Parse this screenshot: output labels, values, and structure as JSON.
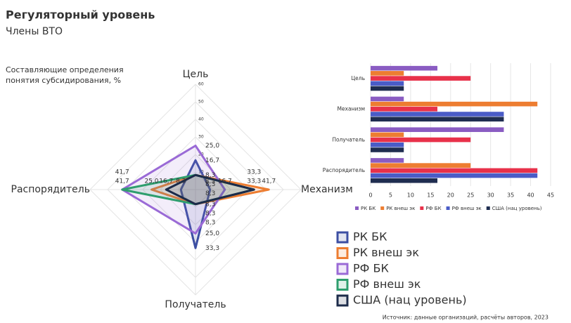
{
  "header": {
    "title": "Регуляторный уровень",
    "subtitle": "Члены ВТО",
    "note": "Составляющие определения понятия субсидирования, %",
    "source": "Источник: данные организаций, расчёты авторов, 2023"
  },
  "chart_data": [
    {
      "type": "radar",
      "categories": [
        "Цель",
        "Механизм",
        "Получатель",
        "Распорядитель"
      ],
      "ylim": [
        0,
        60
      ],
      "yticks": [
        10,
        20,
        30,
        40,
        50,
        60
      ],
      "grid": true,
      "legend": "bottom-right",
      "series": [
        {
          "name": "РК БК",
          "color": "#3c4fa3",
          "values": [
            16.7,
            8.3,
            33.3,
            8.3
          ],
          "value_labels": [
            "16,7",
            "8,3",
            "33,3",
            "8,3"
          ]
        },
        {
          "name": "РК внеш эк",
          "color": "#ed7d31",
          "values": [
            8.3,
            41.7,
            8.3,
            25
          ],
          "value_labels": [
            "8,3",
            "41,7",
            "8,3",
            "25,0"
          ]
        },
        {
          "name": "РФ БК",
          "color": "#9a6ad6",
          "values": [
            25,
            16.7,
            25,
            41.7
          ],
          "value_labels": [
            "25,0",
            "16,7",
            "25,0",
            "41,7"
          ]
        },
        {
          "name": "РФ внеш эк",
          "color": "#2e9e6e",
          "values": [
            8.3,
            33.3,
            8.3,
            41.7
          ],
          "value_labels": [
            "8,3",
            "33,3",
            "8,3",
            "41,7"
          ]
        },
        {
          "name": "США (нац уровень)",
          "color": "#1c2b4a",
          "values": [
            8.3,
            33.3,
            8.3,
            16.7
          ],
          "value_labels": [
            "8,3",
            "33,3",
            "8,3",
            "16,7"
          ]
        }
      ]
    },
    {
      "type": "hbar",
      "categories": [
        "Цель",
        "Механизм",
        "Получатель",
        "Распорядитель"
      ],
      "xlim": [
        0,
        45
      ],
      "xticks": [
        0,
        5,
        10,
        15,
        20,
        25,
        30,
        35,
        40,
        45
      ],
      "legend": "bottom",
      "series": [
        {
          "name": "РК БК",
          "color": "#8a5cc2",
          "values": [
            16.7,
            8.3,
            33.3,
            8.3
          ]
        },
        {
          "name": "РК внеш эк",
          "color": "#ed7d31",
          "values": [
            8.3,
            41.7,
            8.3,
            25
          ]
        },
        {
          "name": "РФ БК",
          "color": "#e8314a",
          "values": [
            25,
            16.7,
            25,
            41.7
          ]
        },
        {
          "name": "РФ внеш эк",
          "color": "#4a5cc7",
          "values": [
            8.3,
            33.3,
            8.3,
            41.7
          ]
        },
        {
          "name": "США (нац уровень)",
          "color": "#1f2d50",
          "values": [
            8.3,
            33.3,
            8.3,
            16.7
          ]
        }
      ]
    }
  ]
}
